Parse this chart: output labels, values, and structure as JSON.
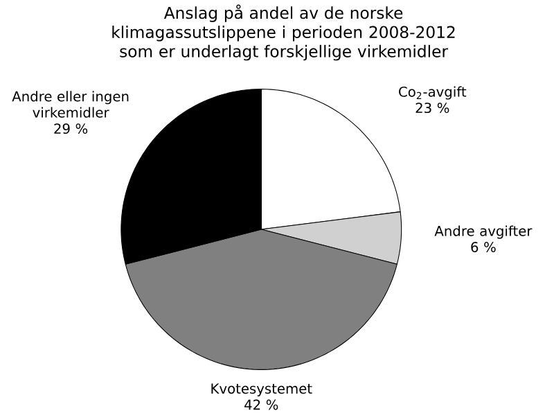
{
  "chart_data": {
    "type": "pie",
    "title": "Anslag på andel av de norske klimagassutslippene i perioden 2008-2012 som er underlagt forskjellige virkemidler",
    "categories": [
      "Co$_{2}$-avgift",
      "Andre avgifter",
      "Kvotesystemet",
      "Andre eller ingen virkemidler"
    ],
    "values": [
      23,
      6,
      42,
      29
    ],
    "value_labels": [
      "23 %",
      "6 %",
      "42 %",
      "29 %"
    ],
    "colors": [
      "#ffffff",
      "#d0d0d0",
      "#808080",
      "#000000"
    ]
  }
}
